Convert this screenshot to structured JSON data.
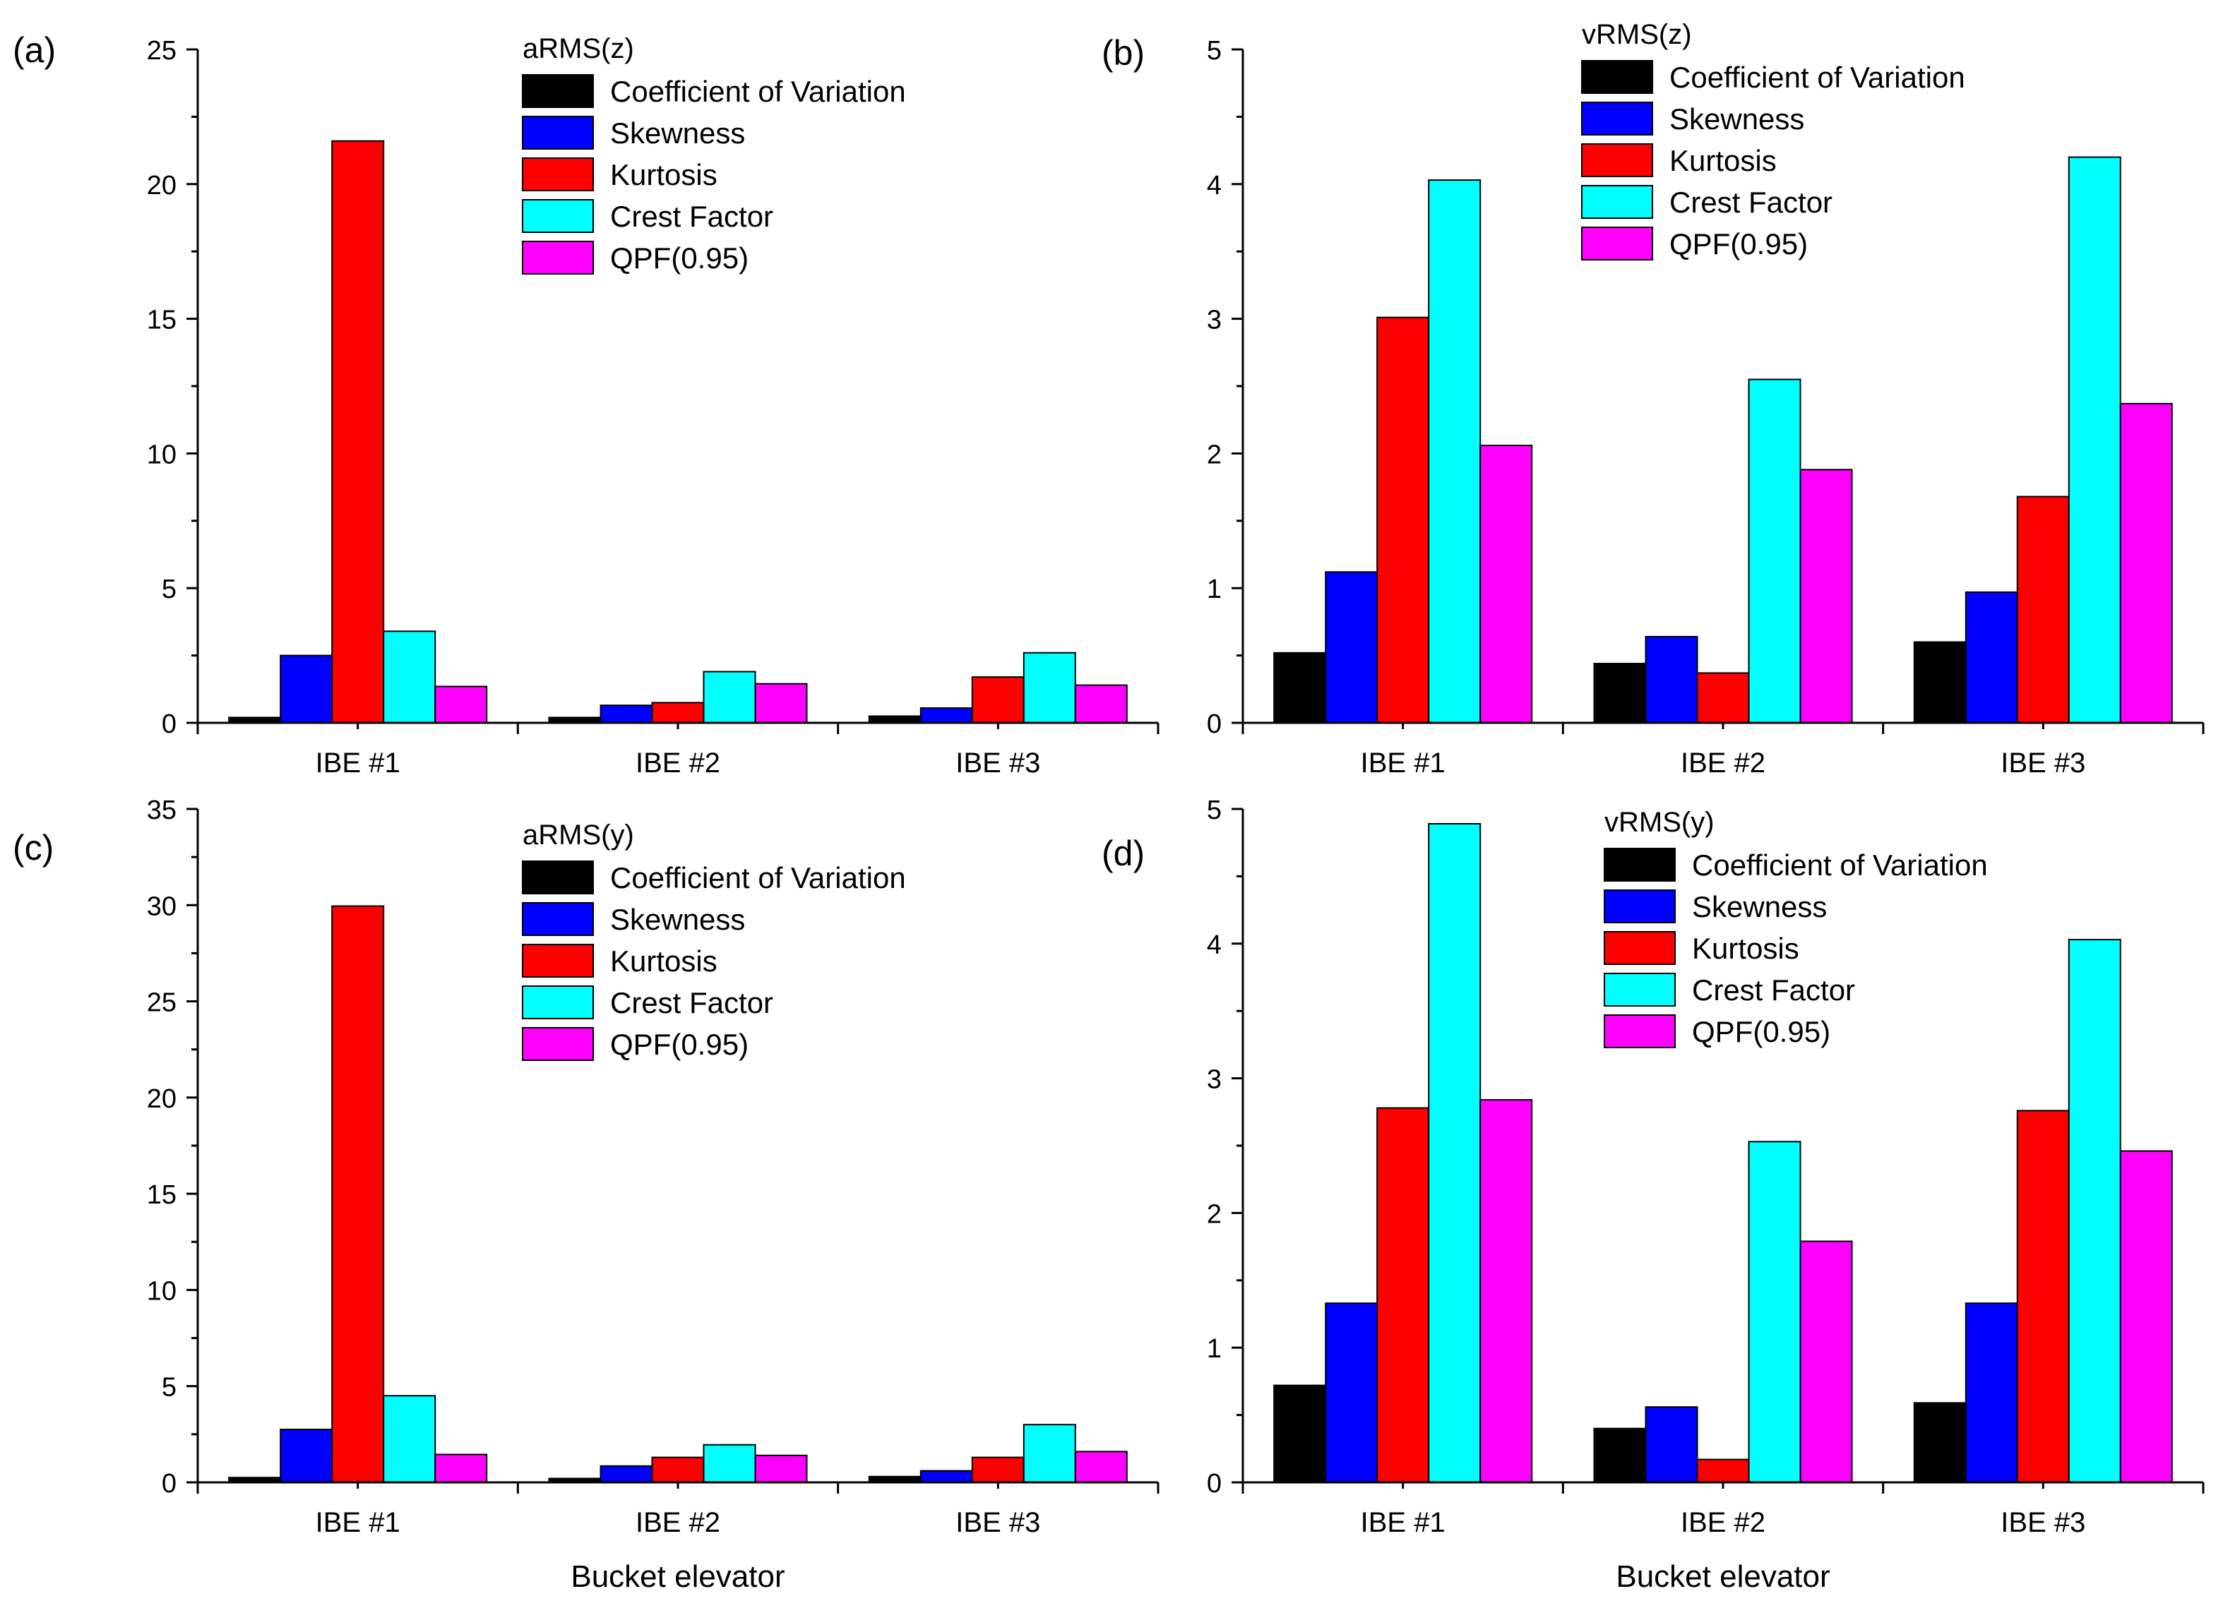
{
  "colors": {
    "Coefficient of Variation": "#000000",
    "Skewness": "#0000ff",
    "Kurtosis": "#ff0000",
    "Crest Factor": "#00ffff",
    "QPF(0.95)": "#ff00ff"
  },
  "chart_data": [
    {
      "panel": "(a)",
      "type": "bar",
      "legend_title": "aRMS(z)",
      "categories": [
        "IBE #1",
        "IBE #2",
        "IBE #3"
      ],
      "ylim": [
        0,
        25
      ],
      "yticks": [
        0,
        5,
        10,
        15,
        20,
        25
      ],
      "xlabel": "",
      "series": [
        {
          "name": "Coefficient of Variation",
          "values": [
            0.2,
            0.2,
            0.25
          ]
        },
        {
          "name": "Skewness",
          "values": [
            2.5,
            0.65,
            0.55
          ]
        },
        {
          "name": "Kurtosis",
          "values": [
            21.6,
            0.75,
            1.7
          ]
        },
        {
          "name": "Crest Factor",
          "values": [
            3.4,
            1.9,
            2.6
          ]
        },
        {
          "name": "QPF(0.95)",
          "values": [
            1.35,
            1.45,
            1.4
          ]
        }
      ]
    },
    {
      "panel": "(b)",
      "type": "bar",
      "legend_title": "vRMS(z)",
      "categories": [
        "IBE #1",
        "IBE #2",
        "IBE #3"
      ],
      "ylim": [
        0,
        5
      ],
      "yticks": [
        0,
        1,
        2,
        3,
        4,
        5
      ],
      "xlabel": "",
      "series": [
        {
          "name": "Coefficient of Variation",
          "values": [
            0.52,
            0.44,
            0.6
          ]
        },
        {
          "name": "Skewness",
          "values": [
            1.12,
            0.64,
            0.97
          ]
        },
        {
          "name": "Kurtosis",
          "values": [
            3.01,
            0.37,
            1.68
          ]
        },
        {
          "name": "Crest Factor",
          "values": [
            4.03,
            2.55,
            4.2
          ]
        },
        {
          "name": "QPF(0.95)",
          "values": [
            2.06,
            1.88,
            2.37
          ]
        }
      ]
    },
    {
      "panel": "(c)",
      "type": "bar",
      "legend_title": "aRMS(y)",
      "categories": [
        "IBE #1",
        "IBE #2",
        "IBE #3"
      ],
      "ylim": [
        0,
        35
      ],
      "yticks": [
        0,
        5,
        10,
        15,
        20,
        25,
        30,
        35
      ],
      "xlabel": "Bucket elevator",
      "series": [
        {
          "name": "Coefficient of Variation",
          "values": [
            0.25,
            0.2,
            0.3
          ]
        },
        {
          "name": "Skewness",
          "values": [
            2.75,
            0.85,
            0.6
          ]
        },
        {
          "name": "Kurtosis",
          "values": [
            29.95,
            1.3,
            1.3
          ]
        },
        {
          "name": "Crest Factor",
          "values": [
            4.5,
            1.95,
            3.0
          ]
        },
        {
          "name": "QPF(0.95)",
          "values": [
            1.45,
            1.4,
            1.6
          ]
        }
      ]
    },
    {
      "panel": "(d)",
      "type": "bar",
      "legend_title": "vRMS(y)",
      "categories": [
        "IBE #1",
        "IBE #2",
        "IBE #3"
      ],
      "ylim": [
        0,
        5
      ],
      "yticks": [
        0,
        1,
        2,
        3,
        4,
        5
      ],
      "xlabel": "Bucket elevator",
      "series": [
        {
          "name": "Coefficient of Variation",
          "values": [
            0.72,
            0.4,
            0.59
          ]
        },
        {
          "name": "Skewness",
          "values": [
            1.33,
            0.56,
            1.33
          ]
        },
        {
          "name": "Kurtosis",
          "values": [
            2.78,
            0.17,
            2.76
          ]
        },
        {
          "name": "Crest Factor",
          "values": [
            4.89,
            2.53,
            4.03
          ]
        },
        {
          "name": "QPF(0.95)",
          "values": [
            2.84,
            1.79,
            2.46
          ]
        }
      ]
    }
  ]
}
